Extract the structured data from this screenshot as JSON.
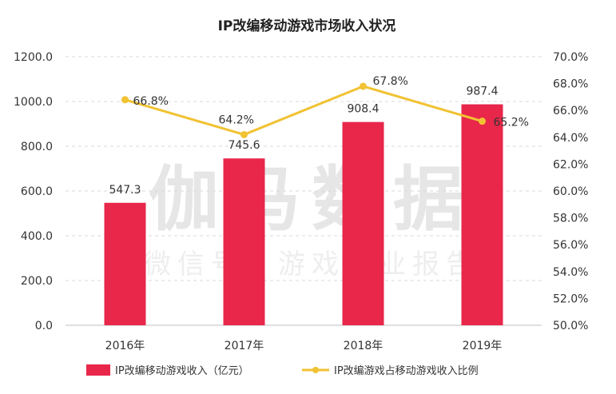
{
  "chart_data": {
    "type": "bar",
    "title": "IP改编移动游戏市场收入状况",
    "categories": [
      "2016年",
      "2017年",
      "2018年",
      "2019年"
    ],
    "series": [
      {
        "name": "IP改编移动游戏收入（亿元）",
        "kind": "bar",
        "axis": "left",
        "color": "#e8274a",
        "values": [
          547.3,
          745.6,
          908.4,
          987.4
        ],
        "labels": [
          "547.3",
          "745.6",
          "908.4",
          "987.4"
        ]
      },
      {
        "name": "IP改编游戏占移动游戏收入比例",
        "kind": "line",
        "axis": "right",
        "color": "#f1c232",
        "values": [
          66.8,
          64.2,
          67.8,
          65.2
        ],
        "labels": [
          "66.8%",
          "64.2%",
          "67.8%",
          "65.2%"
        ]
      }
    ],
    "y_left": {
      "min": 0,
      "max": 1200,
      "ticks": [
        0,
        200,
        400,
        600,
        800,
        1000,
        1200
      ],
      "tick_labels": [
        "0.0",
        "200.0",
        "400.0",
        "600.0",
        "800.0",
        "1000.0",
        "1200.0"
      ]
    },
    "y_right": {
      "min": 50,
      "max": 70,
      "ticks": [
        50,
        52,
        54,
        56,
        58,
        60,
        62,
        64,
        66,
        68,
        70
      ],
      "tick_labels": [
        "50.0%",
        "52.0%",
        "54.0%",
        "56.0%",
        "58.0%",
        "60.0%",
        "62.0%",
        "64.0%",
        "66.0%",
        "68.0%",
        "70.0%"
      ]
    },
    "grid": true,
    "legend": "bottom"
  },
  "watermark": {
    "main": "伽马数据",
    "sub": "微信号：游戏产业报告"
  },
  "colors": {
    "grid": "#d9d9d9",
    "text": "#333333"
  }
}
